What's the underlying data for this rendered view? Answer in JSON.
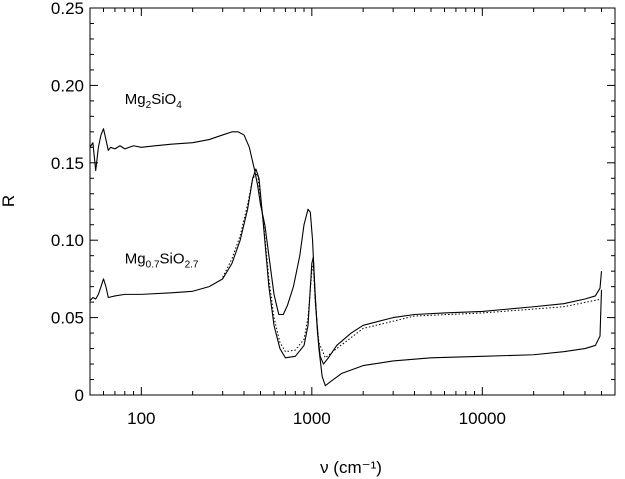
{
  "chart_data": {
    "type": "line",
    "title": "",
    "xlabel": "ν (cm⁻¹)",
    "ylabel": "R",
    "x_scale": "log",
    "xlim": [
      50,
      60000
    ],
    "ylim": [
      0,
      0.25
    ],
    "x_ticks": [
      {
        "value": 100,
        "label": "100"
      },
      {
        "value": 1000,
        "label": "1000"
      },
      {
        "value": 10000,
        "label": "10000"
      }
    ],
    "y_ticks": [
      {
        "value": 0,
        "label": "0"
      },
      {
        "value": 0.05,
        "label": "0.05"
      },
      {
        "value": 0.1,
        "label": "0.10"
      },
      {
        "value": 0.15,
        "label": "0.15"
      },
      {
        "value": 0.2,
        "label": "0.20"
      },
      {
        "value": 0.25,
        "label": "0.25"
      }
    ],
    "grid": false,
    "legend": "none",
    "annotations": [
      {
        "base": "Mg",
        "sub1": "2",
        "mid": "SiO",
        "sub2": "4",
        "x": 80,
        "y": 0.188
      },
      {
        "base": "Mg",
        "sub1": "0.7",
        "mid": "SiO",
        "sub2": "2.7",
        "x": 80,
        "y": 0.085
      }
    ],
    "series": [
      {
        "style": "solid",
        "points": [
          [
            50,
            0.16
          ],
          [
            52,
            0.163
          ],
          [
            54,
            0.145
          ],
          [
            56,
            0.16
          ],
          [
            58,
            0.168
          ],
          [
            60,
            0.172
          ],
          [
            62,
            0.165
          ],
          [
            64,
            0.158
          ],
          [
            66,
            0.16
          ],
          [
            70,
            0.159
          ],
          [
            75,
            0.161
          ],
          [
            80,
            0.159
          ],
          [
            90,
            0.161
          ],
          [
            100,
            0.16
          ],
          [
            120,
            0.161
          ],
          [
            150,
            0.162
          ],
          [
            200,
            0.163
          ],
          [
            250,
            0.165
          ],
          [
            300,
            0.168
          ],
          [
            340,
            0.17
          ],
          [
            370,
            0.17
          ],
          [
            400,
            0.168
          ],
          [
            430,
            0.16
          ],
          [
            460,
            0.146
          ],
          [
            480,
            0.136
          ],
          [
            500,
            0.123
          ],
          [
            530,
            0.11
          ],
          [
            560,
            0.09
          ],
          [
            600,
            0.065
          ],
          [
            640,
            0.052
          ],
          [
            680,
            0.052
          ],
          [
            720,
            0.058
          ],
          [
            780,
            0.07
          ],
          [
            850,
            0.09
          ],
          [
            900,
            0.11
          ],
          [
            950,
            0.12
          ],
          [
            980,
            0.118
          ],
          [
            1010,
            0.1
          ],
          [
            1040,
            0.07
          ],
          [
            1080,
            0.04
          ],
          [
            1120,
            0.025
          ],
          [
            1170,
            0.02
          ],
          [
            1250,
            0.024
          ],
          [
            1400,
            0.032
          ],
          [
            1700,
            0.04
          ],
          [
            2000,
            0.045
          ],
          [
            3000,
            0.05
          ],
          [
            4000,
            0.052
          ],
          [
            6000,
            0.053
          ],
          [
            10000,
            0.054
          ],
          [
            20000,
            0.057
          ],
          [
            30000,
            0.059
          ],
          [
            40000,
            0.062
          ],
          [
            46000,
            0.064
          ],
          [
            49000,
            0.069
          ],
          [
            50000,
            0.08
          ]
        ]
      },
      {
        "style": "solid",
        "points": [
          [
            50,
            0.061
          ],
          [
            52,
            0.063
          ],
          [
            54,
            0.062
          ],
          [
            56,
            0.065
          ],
          [
            58,
            0.07
          ],
          [
            60,
            0.075
          ],
          [
            62,
            0.07
          ],
          [
            64,
            0.063
          ],
          [
            70,
            0.064
          ],
          [
            80,
            0.065
          ],
          [
            100,
            0.065
          ],
          [
            150,
            0.066
          ],
          [
            200,
            0.067
          ],
          [
            250,
            0.07
          ],
          [
            300,
            0.075
          ],
          [
            340,
            0.085
          ],
          [
            380,
            0.1
          ],
          [
            420,
            0.12
          ],
          [
            450,
            0.14
          ],
          [
            470,
            0.146
          ],
          [
            490,
            0.14
          ],
          [
            520,
            0.11
          ],
          [
            560,
            0.07
          ],
          [
            600,
            0.045
          ],
          [
            650,
            0.03
          ],
          [
            700,
            0.024
          ],
          [
            800,
            0.025
          ],
          [
            900,
            0.032
          ],
          [
            950,
            0.045
          ],
          [
            1000,
            0.085
          ],
          [
            1020,
            0.089
          ],
          [
            1050,
            0.06
          ],
          [
            1100,
            0.03
          ],
          [
            1150,
            0.012
          ],
          [
            1200,
            0.006
          ],
          [
            1300,
            0.009
          ],
          [
            1500,
            0.014
          ],
          [
            2000,
            0.019
          ],
          [
            3000,
            0.022
          ],
          [
            5000,
            0.024
          ],
          [
            10000,
            0.025
          ],
          [
            20000,
            0.026
          ],
          [
            30000,
            0.028
          ],
          [
            40000,
            0.03
          ],
          [
            46000,
            0.032
          ],
          [
            49000,
            0.038
          ],
          [
            50000,
            0.068
          ]
        ]
      },
      {
        "style": "dotted",
        "points": [
          [
            300,
            0.076
          ],
          [
            340,
            0.088
          ],
          [
            380,
            0.103
          ],
          [
            420,
            0.123
          ],
          [
            450,
            0.14
          ],
          [
            480,
            0.143
          ],
          [
            520,
            0.112
          ],
          [
            560,
            0.075
          ],
          [
            600,
            0.05
          ],
          [
            650,
            0.034
          ],
          [
            700,
            0.028
          ],
          [
            800,
            0.029
          ],
          [
            900,
            0.036
          ],
          [
            950,
            0.05
          ],
          [
            1000,
            0.08
          ],
          [
            1020,
            0.084
          ],
          [
            1050,
            0.058
          ],
          [
            1100,
            0.034
          ],
          [
            1200,
            0.024
          ],
          [
            1400,
            0.03
          ],
          [
            2000,
            0.043
          ],
          [
            4000,
            0.051
          ],
          [
            10000,
            0.053
          ],
          [
            30000,
            0.057
          ],
          [
            50000,
            0.062
          ]
        ]
      }
    ]
  }
}
